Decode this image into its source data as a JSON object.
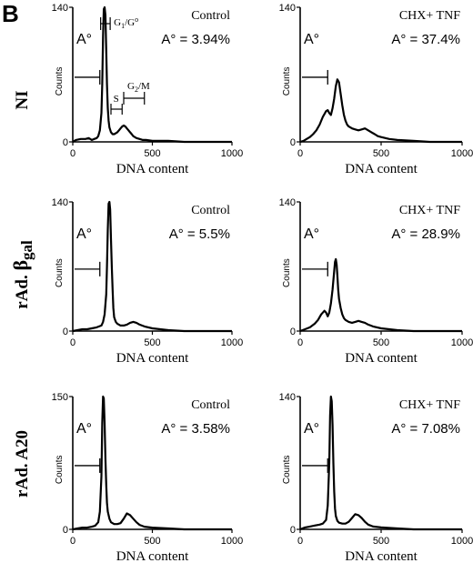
{
  "figure": {
    "panel_letter": "B",
    "row_labels": [
      "NI",
      "rAd. βgal",
      "rAd. A20"
    ],
    "row_label_parts": [
      {
        "text": "NI"
      },
      {
        "prefix": "rAd.",
        "greek": "β",
        "sub": "gal"
      },
      {
        "text": "rAd. A20"
      }
    ],
    "xlabel": "DNA content",
    "ylabel": "Counts",
    "gate_label": "A°",
    "phase_labels": {
      "g1_main": "G",
      "g1_sub1": "1",
      "g1_rest": "/G",
      "g1_sup": "o",
      "s": "S",
      "g2_main": "G",
      "g2_sub": "2",
      "g2_rest": "/M"
    },
    "colors": {
      "trace": "#000000",
      "background": "#ffffff"
    }
  },
  "chart_data": [
    {
      "type": "line",
      "row": 0,
      "col": 0,
      "condition": "Control",
      "apoptosis_label": "A° = 3.94%",
      "xlabel": "DNA content",
      "ylabel": "Counts",
      "xlim": [
        0,
        1000
      ],
      "ylim": [
        0,
        140
      ],
      "xticks": [
        0,
        500,
        1000
      ],
      "yticks": [
        0,
        140
      ],
      "phase_markers": true,
      "x": [
        0,
        20,
        50,
        80,
        100,
        120,
        135,
        150,
        160,
        170,
        180,
        185,
        190,
        195,
        200,
        205,
        210,
        215,
        220,
        225,
        230,
        240,
        250,
        260,
        270,
        280,
        290,
        300,
        310,
        320,
        330,
        340,
        350,
        360,
        370,
        380,
        400,
        420,
        440,
        460,
        500,
        600,
        700,
        800,
        900,
        1000
      ],
      "y": [
        0,
        2,
        3,
        3,
        4,
        2,
        3,
        4,
        6,
        12,
        30,
        60,
        110,
        138,
        140,
        132,
        95,
        60,
        35,
        22,
        15,
        10,
        8,
        8,
        9,
        10,
        12,
        14,
        16,
        17,
        16,
        14,
        12,
        10,
        8,
        6,
        4,
        3,
        2,
        2,
        1,
        1,
        0,
        0,
        0,
        0
      ]
    },
    {
      "type": "line",
      "row": 0,
      "col": 1,
      "condition": "CHX+ TNF",
      "apoptosis_label": "A° = 37.4%",
      "xlabel": "DNA content",
      "ylabel": "Counts",
      "xlim": [
        0,
        1000
      ],
      "ylim": [
        0,
        140
      ],
      "xticks": [
        0,
        500,
        1000
      ],
      "yticks": [
        0,
        140
      ],
      "phase_markers": false,
      "x": [
        0,
        20,
        40,
        60,
        80,
        100,
        120,
        140,
        160,
        170,
        180,
        190,
        200,
        210,
        220,
        230,
        240,
        250,
        260,
        270,
        280,
        290,
        300,
        310,
        320,
        340,
        360,
        380,
        400,
        420,
        440,
        460,
        480,
        500,
        550,
        600,
        700,
        800,
        900,
        1000
      ],
      "y": [
        0,
        1,
        3,
        5,
        8,
        12,
        18,
        26,
        32,
        33,
        30,
        28,
        35,
        45,
        58,
        65,
        62,
        50,
        38,
        28,
        22,
        18,
        16,
        15,
        14,
        13,
        12,
        13,
        14,
        12,
        10,
        8,
        6,
        5,
        3,
        2,
        1,
        0,
        0,
        0
      ]
    },
    {
      "type": "line",
      "row": 1,
      "col": 0,
      "condition": "Control",
      "apoptosis_label": "A° = 5.5%",
      "xlabel": "DNA content",
      "ylabel": "Counts",
      "xlim": [
        0,
        1000
      ],
      "ylim": [
        0,
        140
      ],
      "xticks": [
        0,
        500,
        1000
      ],
      "yticks": [
        0,
        140
      ],
      "phase_markers": false,
      "x": [
        0,
        30,
        60,
        90,
        120,
        150,
        180,
        190,
        200,
        210,
        215,
        220,
        225,
        230,
        235,
        240,
        245,
        250,
        255,
        260,
        270,
        280,
        300,
        320,
        340,
        360,
        380,
        400,
        420,
        450,
        500,
        600,
        700,
        800,
        900,
        1000
      ],
      "y": [
        0,
        1,
        2,
        2,
        3,
        4,
        6,
        10,
        18,
        40,
        70,
        110,
        138,
        140,
        132,
        100,
        70,
        45,
        25,
        15,
        10,
        8,
        6,
        6,
        7,
        9,
        10,
        9,
        7,
        5,
        3,
        1,
        0,
        0,
        0,
        0
      ]
    },
    {
      "type": "line",
      "row": 1,
      "col": 1,
      "condition": "CHX+ TNF",
      "apoptosis_label": "A° = 28.9%",
      "xlabel": "DNA content",
      "ylabel": "Counts",
      "xlim": [
        0,
        1000
      ],
      "ylim": [
        0,
        140
      ],
      "xticks": [
        0,
        500,
        1000
      ],
      "yticks": [
        0,
        140
      ],
      "phase_markers": false,
      "x": [
        0,
        30,
        60,
        90,
        110,
        130,
        150,
        160,
        170,
        180,
        190,
        200,
        210,
        215,
        220,
        225,
        230,
        235,
        240,
        250,
        260,
        270,
        280,
        300,
        320,
        340,
        360,
        380,
        400,
        420,
        450,
        500,
        600,
        700,
        800,
        900,
        1000
      ],
      "y": [
        0,
        2,
        4,
        8,
        12,
        18,
        22,
        20,
        16,
        20,
        30,
        45,
        65,
        75,
        78,
        72,
        60,
        45,
        35,
        25,
        18,
        14,
        12,
        10,
        9,
        10,
        11,
        10,
        9,
        7,
        5,
        3,
        1,
        0,
        0,
        0,
        0
      ]
    },
    {
      "type": "line",
      "row": 2,
      "col": 0,
      "condition": "Control",
      "apoptosis_label": "A° = 3.58%",
      "xlabel": "DNA content",
      "ylabel": "Counts",
      "xlim": [
        0,
        1000
      ],
      "ylim": [
        0,
        150
      ],
      "xticks": [
        0,
        500,
        1000
      ],
      "yticks": [
        0,
        150
      ],
      "phase_markers": false,
      "x": [
        0,
        30,
        60,
        90,
        120,
        140,
        160,
        170,
        180,
        185,
        190,
        195,
        200,
        205,
        210,
        215,
        220,
        230,
        240,
        260,
        280,
        300,
        320,
        340,
        360,
        380,
        400,
        420,
        450,
        500,
        600,
        700,
        800,
        900,
        1000
      ],
      "y": [
        0,
        1,
        2,
        2,
        3,
        4,
        8,
        20,
        60,
        120,
        150,
        148,
        120,
        80,
        50,
        30,
        20,
        12,
        8,
        6,
        6,
        7,
        12,
        18,
        16,
        12,
        8,
        5,
        3,
        2,
        1,
        0,
        0,
        0,
        0
      ]
    },
    {
      "type": "line",
      "row": 2,
      "col": 1,
      "condition": "CHX+ TNF",
      "apoptosis_label": "A° = 7.08%",
      "xlabel": "DNA content",
      "ylabel": "Counts",
      "xlim": [
        0,
        1000
      ],
      "ylim": [
        0,
        140
      ],
      "xticks": [
        0,
        500,
        1000
      ],
      "yticks": [
        0,
        140
      ],
      "phase_markers": false,
      "x": [
        0,
        30,
        60,
        90,
        120,
        140,
        160,
        170,
        180,
        185,
        190,
        195,
        200,
        205,
        210,
        215,
        220,
        230,
        240,
        260,
        280,
        300,
        320,
        340,
        360,
        380,
        400,
        420,
        450,
        500,
        600,
        700,
        800,
        900,
        1000
      ],
      "y": [
        0,
        2,
        3,
        4,
        5,
        6,
        10,
        25,
        70,
        120,
        140,
        135,
        110,
        70,
        40,
        22,
        14,
        9,
        7,
        6,
        6,
        8,
        12,
        16,
        15,
        12,
        8,
        5,
        3,
        2,
        1,
        0,
        0,
        0,
        0
      ]
    }
  ]
}
